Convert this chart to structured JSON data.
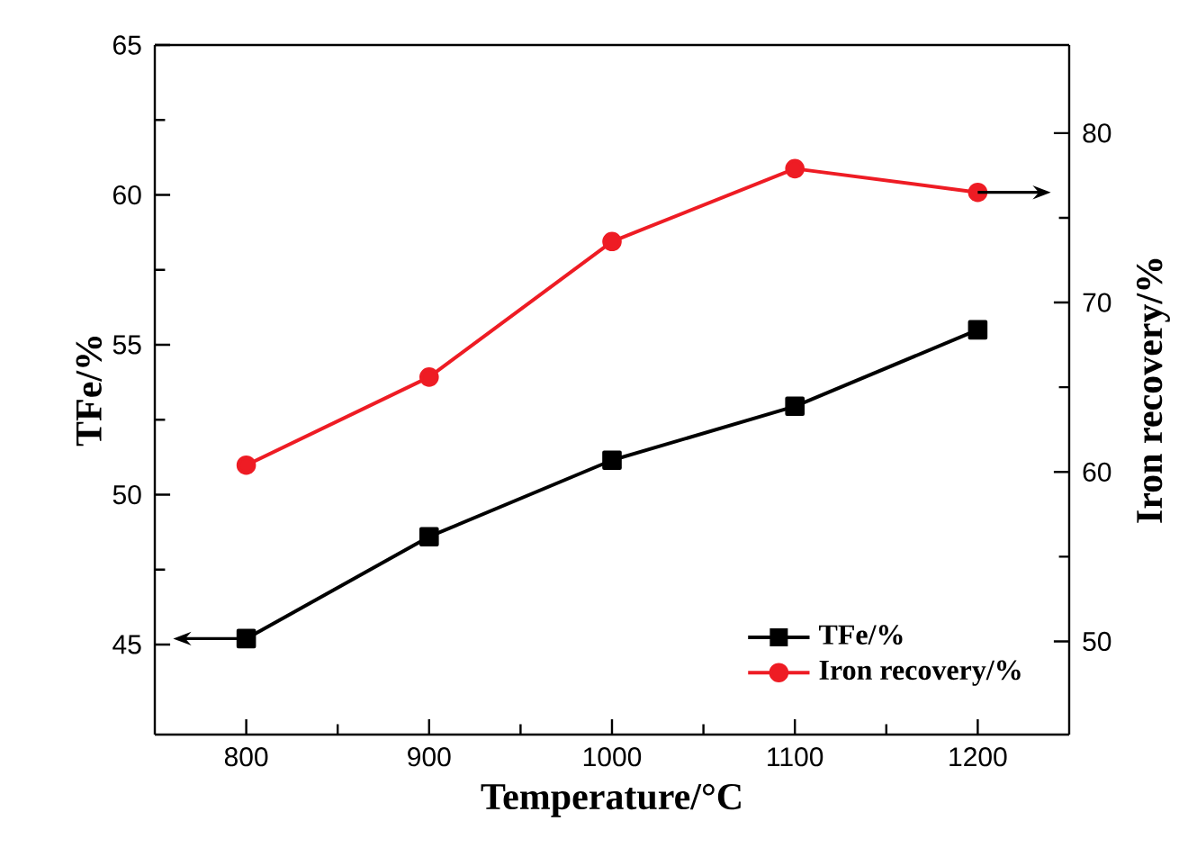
{
  "chart_data": {
    "type": "line",
    "xlabel": "Temperature/°C",
    "ylabel": "TFe/%",
    "y2label": "Iron recovery/%",
    "x": [
      800,
      900,
      1000,
      1100,
      1200
    ],
    "series": [
      {
        "name": "TFe/%",
        "color": "#000000",
        "marker": "square",
        "values": [
          45.2,
          48.6,
          51.15,
          52.95,
          55.5
        ]
      },
      {
        "name": "Iron recovery/%",
        "color": "#ee1c24",
        "marker": "circle",
        "axis": "y2",
        "values": [
          60.4,
          65.6,
          73.6,
          77.9,
          76.5
        ]
      }
    ],
    "xlim": [
      750,
      1250
    ],
    "xticks": [
      800,
      900,
      1000,
      1100,
      1200
    ],
    "ylim": [
      42,
      65
    ],
    "yticks": [
      45,
      50,
      55,
      60,
      65
    ],
    "y2lim": [
      44.5,
      85.2
    ],
    "y2ticks": [
      50,
      60,
      70,
      80
    ],
    "legend": "bottom right",
    "grid": false,
    "line_style": "solid"
  }
}
